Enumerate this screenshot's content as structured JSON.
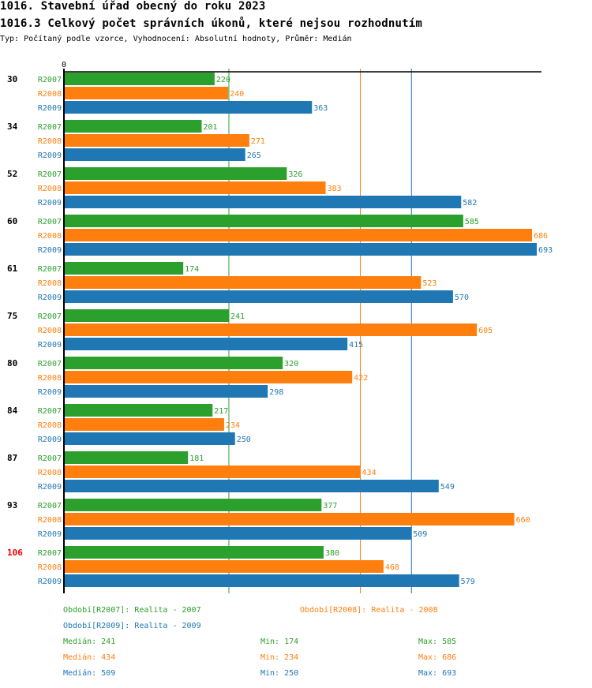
{
  "header": {
    "title": "1016. Stavební úřad obecný do roku 2023",
    "subtitle": "1016.3 Celkový počet správních úkonů, které nejsou rozhodnutím",
    "type_line": "Typ: Počítaný podle vzorce, Vyhodnocení: Absolutní hodnoty, Průměr: Medián"
  },
  "chart_data": {
    "type": "bar",
    "orientation": "horizontal",
    "title": "1016.3 Celkový počet správních úkonů, které nejsou rozhodnutím",
    "xlabel": "",
    "ylabel": "",
    "x_axis_tick_label": "0",
    "xlim": [
      0,
      700
    ],
    "grid": false,
    "legend_position": "bottom",
    "categories": [
      "30",
      "34",
      "52",
      "60",
      "61",
      "75",
      "80",
      "84",
      "87",
      "93",
      "106"
    ],
    "highlighted_category": "106",
    "series": [
      {
        "name": "R2007",
        "color": "#2ca02c",
        "values": [
          220,
          201,
          326,
          585,
          174,
          241,
          320,
          217,
          181,
          377,
          380
        ],
        "median": 241
      },
      {
        "name": "R2008",
        "color": "#ff7f0e",
        "values": [
          240,
          271,
          383,
          686,
          523,
          605,
          422,
          234,
          434,
          660,
          468
        ],
        "median": 434
      },
      {
        "name": "R2009",
        "color": "#1f77b4",
        "values": [
          363,
          265,
          582,
          693,
          570,
          415,
          298,
          250,
          549,
          509,
          579
        ],
        "median": 509
      }
    ]
  },
  "legend": {
    "periods": [
      {
        "text": "Období[R2007]: Realita - 2007",
        "color": "#2ca02c"
      },
      {
        "text": "Období[R2008]: Realita - 2008",
        "color": "#ff7f0e"
      },
      {
        "text": "Období[R2009]: Realita - 2009",
        "color": "#1f77b4"
      }
    ],
    "stats": [
      {
        "median": "Medián: 241",
        "min": "Min: 174",
        "max": "Max: 585",
        "color": "#2ca02c"
      },
      {
        "median": "Medián: 434",
        "min": "Min: 234",
        "max": "Max: 686",
        "color": "#ff7f0e"
      },
      {
        "median": "Medián: 509",
        "min": "Min: 250",
        "max": "Max: 693",
        "color": "#1f77b4"
      }
    ]
  },
  "colors": {
    "highlight": "#ee0000",
    "axis": "#000000"
  }
}
